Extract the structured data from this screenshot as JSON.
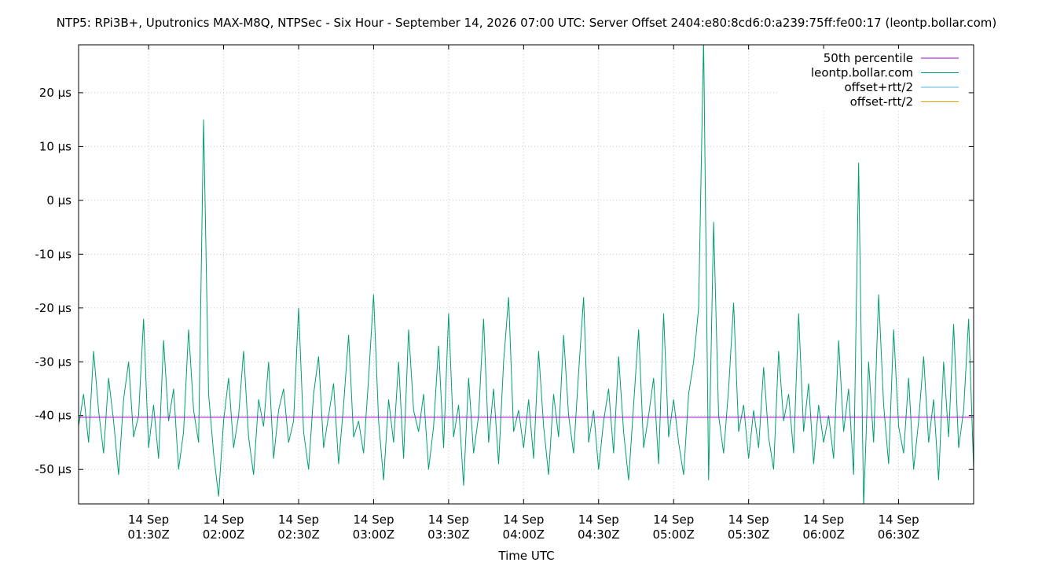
{
  "chart_data": {
    "type": "line",
    "title": "NTP5: RPi3B+, Uputronics MAX-M8Q, NTPSec - Six Hour - September 14, 2026 07:00 UTC: Server Offset 2404:e80:8cd6:0:a239:75ff:fe00:17 (leontp.bollar.com)",
    "x_label": "Time UTC",
    "xlim": [
      "01:02",
      "07:00"
    ],
    "xticks": [
      {
        "value": "01:30",
        "label": [
          "14 Sep",
          "01:30Z"
        ]
      },
      {
        "value": "02:00",
        "label": [
          "14 Sep",
          "02:00Z"
        ]
      },
      {
        "value": "02:30",
        "label": [
          "14 Sep",
          "02:30Z"
        ]
      },
      {
        "value": "03:00",
        "label": [
          "14 Sep",
          "03:00Z"
        ]
      },
      {
        "value": "03:30",
        "label": [
          "14 Sep",
          "03:30Z"
        ]
      },
      {
        "value": "04:00",
        "label": [
          "14 Sep",
          "04:00Z"
        ]
      },
      {
        "value": "04:30",
        "label": [
          "14 Sep",
          "04:30Z"
        ]
      },
      {
        "value": "05:00",
        "label": [
          "14 Sep",
          "05:00Z"
        ]
      },
      {
        "value": "05:30",
        "label": [
          "14 Sep",
          "05:30Z"
        ]
      },
      {
        "value": "06:00",
        "label": [
          "14 Sep",
          "06:00Z"
        ]
      },
      {
        "value": "06:30",
        "label": [
          "14 Sep",
          "06:30Z"
        ]
      }
    ],
    "ylim": [
      -56.4,
      28.9
    ],
    "yticks": [
      {
        "value": -50,
        "label": "-50 µs"
      },
      {
        "value": -40,
        "label": "-40 µs"
      },
      {
        "value": -30,
        "label": "-30 µs"
      },
      {
        "value": -20,
        "label": "-20 µs"
      },
      {
        "value": -10,
        "label": "-10 µs"
      },
      {
        "value": 0,
        "label": "0 µs"
      },
      {
        "value": 10,
        "label": "10 µs"
      },
      {
        "value": 20,
        "label": "20 µs"
      }
    ],
    "grid": true,
    "legend": "top-right",
    "x": [
      "01:02",
      "01:04",
      "01:06",
      "01:08",
      "01:10",
      "01:12",
      "01:14",
      "01:16",
      "01:18",
      "01:20",
      "01:22",
      "01:24",
      "01:26",
      "01:28",
      "01:30",
      "01:32",
      "01:34",
      "01:36",
      "01:38",
      "01:40",
      "01:42",
      "01:44",
      "01:46",
      "01:48",
      "01:50",
      "01:52",
      "01:54",
      "01:56",
      "01:58",
      "02:00",
      "02:02",
      "02:04",
      "02:06",
      "02:08",
      "02:10",
      "02:12",
      "02:14",
      "02:16",
      "02:18",
      "02:20",
      "02:22",
      "02:24",
      "02:26",
      "02:28",
      "02:30",
      "02:32",
      "02:34",
      "02:36",
      "02:38",
      "02:40",
      "02:42",
      "02:44",
      "02:46",
      "02:48",
      "02:50",
      "02:52",
      "02:54",
      "02:56",
      "02:58",
      "03:00",
      "03:02",
      "03:04",
      "03:06",
      "03:08",
      "03:10",
      "03:12",
      "03:14",
      "03:16",
      "03:18",
      "03:20",
      "03:22",
      "03:24",
      "03:26",
      "03:28",
      "03:30",
      "03:32",
      "03:34",
      "03:36",
      "03:38",
      "03:40",
      "03:42",
      "03:44",
      "03:46",
      "03:48",
      "03:50",
      "03:52",
      "03:54",
      "03:56",
      "03:58",
      "04:00",
      "04:02",
      "04:04",
      "04:06",
      "04:08",
      "04:10",
      "04:12",
      "04:14",
      "04:16",
      "04:18",
      "04:20",
      "04:22",
      "04:24",
      "04:26",
      "04:28",
      "04:30",
      "04:32",
      "04:34",
      "04:36",
      "04:38",
      "04:40",
      "04:42",
      "04:44",
      "04:46",
      "04:48",
      "04:50",
      "04:52",
      "04:54",
      "04:56",
      "04:58",
      "05:00",
      "05:02",
      "05:04",
      "05:06",
      "05:08",
      "05:10",
      "05:12",
      "05:14",
      "05:16",
      "05:18",
      "05:20",
      "05:22",
      "05:24",
      "05:26",
      "05:28",
      "05:30",
      "05:32",
      "05:34",
      "05:36",
      "05:38",
      "05:40",
      "05:42",
      "05:44",
      "05:46",
      "05:48",
      "05:50",
      "05:52",
      "05:54",
      "05:56",
      "05:58",
      "06:00",
      "06:02",
      "06:04",
      "06:06",
      "06:08",
      "06:10",
      "06:12",
      "06:14",
      "06:16",
      "06:18",
      "06:20",
      "06:22",
      "06:24",
      "06:26",
      "06:28",
      "06:30",
      "06:32",
      "06:34",
      "06:36",
      "06:38",
      "06:40",
      "06:42",
      "06:44",
      "06:46",
      "06:48",
      "06:50",
      "06:52",
      "06:54",
      "06:56",
      "06:58",
      "07:00"
    ],
    "series": [
      {
        "name": "50th percentile",
        "color": "#9400d3",
        "x": [
          "01:02",
          "07:00"
        ],
        "values": [
          -40.3,
          -40.3
        ]
      },
      {
        "name": "leontp.bollar.com",
        "color": "#009e73",
        "values": [
          -42,
          -36,
          -45,
          -28,
          -39,
          -47,
          -33,
          -41,
          -51,
          -37,
          -30,
          -44,
          -40,
          -22,
          -46,
          -38,
          -48,
          -26,
          -41,
          -35,
          -50,
          -43,
          -24,
          -39,
          -45,
          15,
          -36,
          -47,
          -55,
          -41,
          -33,
          -46,
          -40,
          -28,
          -44,
          -51,
          -37,
          -42,
          -30,
          -48,
          -39,
          -35,
          -45,
          -41,
          -20,
          -43,
          -50,
          -36,
          -29,
          -46,
          -40,
          -34,
          -49,
          -38,
          -25,
          -44,
          -41,
          -47,
          -33,
          -17.5,
          -41,
          -52,
          -37,
          -45,
          -30,
          -48,
          -24,
          -39,
          -43,
          -36,
          -50,
          -42,
          -27,
          -46,
          -21,
          -44,
          -38,
          -53,
          -33,
          -47,
          -40,
          -22,
          -45,
          -35,
          -49,
          -30,
          -18,
          -43,
          -39,
          -46,
          -37,
          -48,
          -28,
          -42,
          -51,
          -36,
          -44,
          -25,
          -40,
          -47,
          -32,
          -18,
          -45,
          -39,
          -50,
          -41,
          -35,
          -47,
          -29,
          -43,
          -52,
          -38,
          -24,
          -46,
          -40,
          -33,
          -49,
          -21,
          -44,
          -37,
          -45,
          -51,
          -36,
          -30,
          -20,
          30,
          -52,
          -4,
          -40,
          -47,
          -35,
          -19,
          -43,
          -38,
          -48,
          -39,
          -46,
          -31,
          -44,
          -50,
          -28,
          -41,
          -36,
          -47,
          -21,
          -43,
          -34,
          -49,
          -38,
          -45,
          -40,
          -48,
          -26,
          -43,
          -35,
          -51,
          7,
          -57,
          -30,
          -45,
          -17.5,
          -38,
          -49,
          -24,
          -42,
          -47,
          -33,
          -50,
          -41,
          -29,
          -45,
          -37,
          -52,
          -30,
          -44,
          -23,
          -46,
          -39,
          -22,
          -50
        ]
      },
      {
        "name": "offset+rtt/2",
        "color": "#56b4e9"
      },
      {
        "name": "offset-rtt/2",
        "color": "#e69f00"
      }
    ]
  }
}
